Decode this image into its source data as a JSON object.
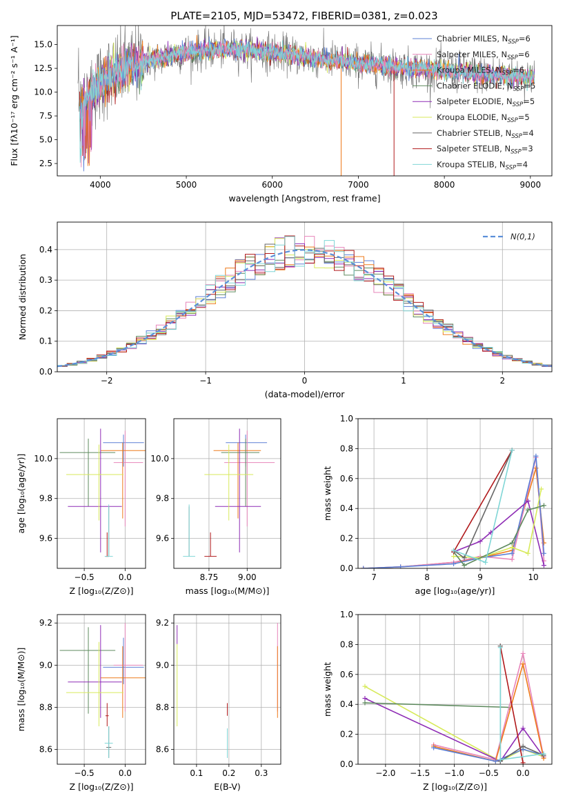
{
  "figure_title": "PLATE=2105, MJD=53472, FIBERID=0381, z=0.023",
  "colors": {
    "Chabrier MILES": "#5b7fd6",
    "Salpeter MILES": "#e784b9",
    "Kroupa MILES": "#ee7a1a",
    "Chabrier ELODIE": "#5e8a5e",
    "Salpeter ELODIE": "#8e2cb5",
    "Kroupa ELODIE": "#d7ea5a",
    "Chabrier STELIB": "#666666",
    "Salpeter STELIB": "#b0181a",
    "Kroupa STELIB": "#7fd6d6"
  },
  "legend": [
    {
      "name": "Chabrier MILES",
      "label_main": "Chabrier MILES, N",
      "label_sub": "SSP",
      "label_tail": "=6"
    },
    {
      "name": "Salpeter MILES",
      "label_main": "Salpeter MILES, N",
      "label_sub": "SSP",
      "label_tail": "=6"
    },
    {
      "name": "Kroupa MILES",
      "label_main": "Kroupa MILES, N",
      "label_sub": "SSP",
      "label_tail": "=6"
    },
    {
      "name": "Chabrier ELODIE",
      "label_main": "Chabrier ELODIE, N",
      "label_sub": "SSP",
      "label_tail": "=5"
    },
    {
      "name": "Salpeter ELODIE",
      "label_main": "Salpeter ELODIE, N",
      "label_sub": "SSP",
      "label_tail": "=5"
    },
    {
      "name": "Kroupa ELODIE",
      "label_main": "Kroupa ELODIE, N",
      "label_sub": "SSP",
      "label_tail": "=5"
    },
    {
      "name": "Chabrier STELIB",
      "label_main": "Chabrier STELIB, N",
      "label_sub": "SSP",
      "label_tail": "=4"
    },
    {
      "name": "Salpeter STELIB",
      "label_main": "Salpeter STELIB, N",
      "label_sub": "SSP",
      "label_tail": "=3"
    },
    {
      "name": "Kroupa STELIB",
      "label_main": "Kroupa STELIB, N",
      "label_sub": "SSP",
      "label_tail": "=4"
    }
  ],
  "chart_data": [
    {
      "id": "spectrum",
      "type": "line",
      "xlabel": "wavelength [Angstrom, rest frame]",
      "ylabel": "Flux [fλ10⁻¹⁷ erg cm⁻² s⁻¹ A⁻¹]",
      "xlim": [
        3500,
        9250
      ],
      "ylim": [
        1.2,
        17.0
      ],
      "xticks": [
        4000,
        5000,
        6000,
        7000,
        8000,
        9000
      ],
      "yticks": [
        2.5,
        5.0,
        7.5,
        10.0,
        12.5,
        15.0
      ],
      "legend_position": "upper-right",
      "continuum_x": [
        3750,
        3800,
        3900,
        4000,
        4100,
        4300,
        4500,
        5000,
        5500,
        6000,
        6500,
        7000,
        7500,
        8000,
        8500,
        9000
      ],
      "continuum_y": [
        8.0,
        9.0,
        10.0,
        11.0,
        11.8,
        12.5,
        13.2,
        14.2,
        14.6,
        14.2,
        13.6,
        13.0,
        12.6,
        12.2,
        11.9,
        11.6
      ],
      "grid": false
    },
    {
      "id": "residual_histogram",
      "type": "step",
      "xlabel": "(data-model)/error",
      "ylabel": "Normed distribution",
      "xlim": [
        -2.5,
        2.5
      ],
      "ylim": [
        0,
        0.49
      ],
      "xticks": [
        -2,
        -1,
        0,
        1,
        2
      ],
      "yticks": [
        0.0,
        0.1,
        0.2,
        0.3,
        0.4
      ],
      "grid": true,
      "legend_label": "N(0,1)",
      "legend_position": "upper-right",
      "bin_width": 0.1
    },
    {
      "id": "age_vs_Z",
      "type": "errorbar",
      "xlabel": "Z [log₁₀(Z/Z⊙)]",
      "ylabel": "age  [log₁₀(age/yr)]",
      "xlim": [
        -0.83,
        0.25
      ],
      "ylim": [
        9.45,
        10.2
      ],
      "xticks": [
        -0.5,
        0.0
      ],
      "yticks": [
        9.6,
        9.8,
        10.0
      ],
      "grid": true,
      "points": [
        {
          "series": "Chabrier MILES",
          "x": -0.02,
          "y": 10.08,
          "xerr": [
            0.25,
            0.25
          ],
          "yerr": [
            0.12,
            0.04
          ]
        },
        {
          "series": "Salpeter MILES",
          "x": 0.0,
          "y": 9.98,
          "xerr": [
            0.14,
            0.22
          ],
          "yerr": [
            0.32,
            0.16
          ]
        },
        {
          "series": "Kroupa MILES",
          "x": -0.03,
          "y": 10.04,
          "xerr": [
            0.27,
            0.28
          ],
          "yerr": [
            0.34,
            0.04
          ]
        },
        {
          "series": "Chabrier ELODIE",
          "x": -0.45,
          "y": 10.03,
          "xerr": [
            0.35,
            0.33
          ],
          "yerr": [
            0.27,
            0.07
          ]
        },
        {
          "series": "Salpeter ELODIE",
          "x": -0.3,
          "y": 9.76,
          "xerr": [
            0.4,
            0.26
          ],
          "yerr": [
            0.23,
            0.39
          ]
        },
        {
          "series": "Kroupa ELODIE",
          "x": -0.32,
          "y": 9.92,
          "xerr": [
            0.4,
            0.3
          ],
          "yerr": [
            0.23,
            0.15
          ]
        },
        {
          "series": "Chabrier STELIB",
          "x": -0.2,
          "y": 9.51,
          "xerr": [
            0.0,
            0.0
          ],
          "yerr": [
            0.0,
            0.25
          ]
        },
        {
          "series": "Salpeter STELIB",
          "x": -0.22,
          "y": 9.51,
          "xerr": [
            0.02,
            0.02
          ],
          "yerr": [
            0.0,
            0.12
          ]
        },
        {
          "series": "Kroupa STELIB",
          "x": -0.2,
          "y": 9.51,
          "xerr": [
            0.05,
            0.05
          ],
          "yerr": [
            0.0,
            0.26
          ]
        }
      ]
    },
    {
      "id": "age_vs_mass",
      "type": "errorbar",
      "xlabel": "mass [log₁₀(M/M⊙)]",
      "xlim": [
        8.52,
        9.22
      ],
      "ylim": [
        9.45,
        10.2
      ],
      "xticks": [
        8.75,
        9.0
      ],
      "yticks": [
        9.6,
        9.8,
        10.0
      ],
      "grid": true,
      "points": [
        {
          "series": "Chabrier MILES",
          "x": 8.99,
          "y": 10.08,
          "xerr": [
            0.13,
            0.14
          ],
          "yerr": [
            0.12,
            0.04
          ]
        },
        {
          "series": "Salpeter MILES",
          "x": 9.0,
          "y": 9.98,
          "xerr": [
            0.15,
            0.18
          ],
          "yerr": [
            0.32,
            0.16
          ]
        },
        {
          "series": "Kroupa MILES",
          "x": 8.94,
          "y": 10.04,
          "xerr": [
            0.16,
            0.15
          ],
          "yerr": [
            0.34,
            0.04
          ]
        },
        {
          "series": "Chabrier ELODIE",
          "x": 8.99,
          "y": 10.03,
          "xerr": [
            0.16,
            0.09
          ],
          "yerr": [
            0.27,
            0.07
          ]
        },
        {
          "series": "Salpeter ELODIE",
          "x": 8.95,
          "y": 9.76,
          "xerr": [
            0.16,
            0.14
          ],
          "yerr": [
            0.23,
            0.39
          ]
        },
        {
          "series": "Kroupa ELODIE",
          "x": 8.88,
          "y": 9.92,
          "xerr": [
            0.16,
            0.16
          ],
          "yerr": [
            0.23,
            0.15
          ]
        },
        {
          "series": "Chabrier STELIB",
          "x": 8.62,
          "y": 9.51,
          "xerr": [
            0.0,
            0.0
          ],
          "yerr": [
            0.0,
            0.25
          ]
        },
        {
          "series": "Salpeter STELIB",
          "x": 8.76,
          "y": 9.51,
          "xerr": [
            0.04,
            0.04
          ],
          "yerr": [
            0.0,
            0.12
          ]
        },
        {
          "series": "Kroupa STELIB",
          "x": 8.62,
          "y": 9.51,
          "xerr": [
            0.04,
            0.04
          ],
          "yerr": [
            0.0,
            0.26
          ]
        }
      ]
    },
    {
      "id": "massweight_vs_age",
      "type": "line",
      "xlabel": "age  [log₁₀(age/yr)]",
      "ylabel": "mass weight",
      "xlim": [
        6.7,
        10.35
      ],
      "ylim": [
        0.0,
        1.0
      ],
      "xticks": [
        7,
        8,
        9,
        10
      ],
      "yticks": [
        0.0,
        0.2,
        0.4,
        0.6,
        0.8,
        1.0
      ],
      "grid": true,
      "series": [
        {
          "name": "Kroupa MILES",
          "x": [
            6.8,
            7.5,
            8.5,
            9.0,
            9.6,
            10.05,
            10.2
          ],
          "y": [
            0.0,
            0.01,
            0.04,
            0.07,
            0.12,
            0.67,
            0.17
          ]
        },
        {
          "name": "Salpeter MILES",
          "x": [
            6.8,
            7.5,
            8.5,
            9.0,
            9.6,
            10.05,
            10.2
          ],
          "y": [
            0.0,
            0.01,
            0.04,
            0.08,
            0.06,
            0.74,
            0.05
          ]
        },
        {
          "name": "Chabrier MILES",
          "x": [
            6.8,
            7.5,
            8.5,
            9.0,
            9.6,
            10.05,
            10.2
          ],
          "y": [
            0.0,
            0.01,
            0.03,
            0.07,
            0.1,
            0.75,
            0.1
          ]
        },
        {
          "name": "Salpeter ELODIE",
          "x": [
            8.5,
            9.0,
            9.2,
            9.9,
            10.2
          ],
          "y": [
            0.11,
            0.18,
            0.24,
            0.45,
            0.02
          ]
        },
        {
          "name": "Kroupa ELODIE",
          "x": [
            8.5,
            9.0,
            9.6,
            9.9,
            10.15
          ],
          "y": [
            0.08,
            0.07,
            0.14,
            0.1,
            0.53
          ]
        },
        {
          "name": "Chabrier ELODIE",
          "x": [
            8.5,
            8.7,
            9.6,
            9.9,
            10.2
          ],
          "y": [
            0.11,
            0.02,
            0.17,
            0.39,
            0.42
          ]
        },
        {
          "name": "Salpeter STELIB",
          "x": [
            8.5,
            9.6
          ],
          "y": [
            0.11,
            0.79
          ]
        },
        {
          "name": "Chabrier STELIB",
          "x": [
            8.5,
            8.7,
            9.6
          ],
          "y": [
            0.12,
            0.07,
            0.79
          ]
        },
        {
          "name": "Kroupa STELIB",
          "x": [
            8.5,
            9.1,
            9.6
          ],
          "y": [
            0.12,
            0.04,
            0.79
          ]
        }
      ]
    },
    {
      "id": "mass_vs_Z",
      "type": "errorbar",
      "xlabel": "Z [log₁₀(Z/Z⊙)]",
      "ylabel": "mass [log₁₀(M/M⊙)]",
      "xlim": [
        -0.83,
        0.25
      ],
      "ylim": [
        8.53,
        9.24
      ],
      "xticks": [
        -0.5,
        0.0
      ],
      "yticks": [
        8.6,
        8.8,
        9.0,
        9.2
      ],
      "grid": true,
      "points": [
        {
          "series": "Chabrier MILES",
          "x": -0.02,
          "y": 8.99,
          "xerr": [
            0.25,
            0.25
          ],
          "yerr": [
            0.08,
            0.14
          ]
        },
        {
          "series": "Salpeter MILES",
          "x": 0.0,
          "y": 9.0,
          "xerr": [
            0.14,
            0.22
          ],
          "yerr": [
            0.22,
            0.2
          ]
        },
        {
          "series": "Kroupa MILES",
          "x": -0.03,
          "y": 8.94,
          "xerr": [
            0.27,
            0.28
          ],
          "yerr": [
            0.19,
            0.15
          ]
        },
        {
          "series": "Chabrier ELODIE",
          "x": -0.45,
          "y": 9.07,
          "xerr": [
            0.35,
            0.33
          ],
          "yerr": [
            0.3,
            0.11
          ]
        },
        {
          "series": "Salpeter ELODIE",
          "x": -0.3,
          "y": 8.92,
          "xerr": [
            0.4,
            0.26
          ],
          "yerr": [
            0.17,
            0.27
          ]
        },
        {
          "series": "Kroupa ELODIE",
          "x": -0.32,
          "y": 8.87,
          "xerr": [
            0.4,
            0.3
          ],
          "yerr": [
            0.16,
            0.24
          ]
        },
        {
          "series": "Chabrier STELIB",
          "x": -0.2,
          "y": 8.61,
          "xerr": [
            0.03,
            0.03
          ],
          "yerr": [
            0.05,
            0.1
          ]
        },
        {
          "series": "Salpeter STELIB",
          "x": -0.22,
          "y": 8.76,
          "xerr": [
            0.02,
            0.02
          ],
          "yerr": [
            0.05,
            0.06
          ]
        },
        {
          "series": "Kroupa STELIB",
          "x": -0.2,
          "y": 8.63,
          "xerr": [
            0.05,
            0.05
          ],
          "yerr": [
            0.07,
            0.08
          ]
        }
      ]
    },
    {
      "id": "mass_vs_EBV",
      "type": "errorbar",
      "xlabel": "E(B-V)",
      "xlim": [
        0.03,
        0.36
      ],
      "ylim": [
        8.53,
        9.24
      ],
      "xticks": [
        0.1,
        0.2,
        0.3
      ],
      "yticks": [
        8.6,
        8.8,
        9.0,
        9.2
      ],
      "grid": true,
      "points": [
        {
          "series": "Salpeter MILES",
          "x": 0.35,
          "y": 9.0,
          "xerr": [
            0.0,
            0.0
          ],
          "yerr": [
            0.22,
            0.2
          ]
        },
        {
          "series": "Kroupa MILES",
          "x": 0.35,
          "y": 8.94,
          "xerr": [
            0.0,
            0.0
          ],
          "yerr": [
            0.19,
            0.15
          ]
        },
        {
          "series": "Salpeter ELODIE",
          "x": 0.04,
          "y": 9.1,
          "xerr": [
            0.0,
            0.0
          ],
          "yerr": [
            0.0,
            0.09
          ]
        },
        {
          "series": "Kroupa ELODIE",
          "x": 0.04,
          "y": 8.9,
          "xerr": [
            0.0,
            0.0
          ],
          "yerr": [
            0.19,
            0.2
          ]
        },
        {
          "series": "Salpeter STELIB",
          "x": 0.195,
          "y": 8.76,
          "xerr": [
            0.0,
            0.0
          ],
          "yerr": [
            0.0,
            0.06
          ]
        },
        {
          "series": "Kroupa STELIB",
          "x": 0.195,
          "y": 8.62,
          "xerr": [
            0.0,
            0.0
          ],
          "yerr": [
            0.06,
            0.08
          ]
        }
      ]
    },
    {
      "id": "massweight_vs_Z",
      "type": "line",
      "xlabel": "Z [log₁₀(Z/Z⊙)]",
      "ylabel": "mass weight",
      "xlim": [
        -2.4,
        0.42
      ],
      "ylim": [
        0.0,
        1.0
      ],
      "xticks": [
        -2.0,
        -1.5,
        -1.0,
        -0.5,
        0.0
      ],
      "yticks": [
        0.0,
        0.2,
        0.4,
        0.6,
        0.8,
        1.0
      ],
      "grid": true,
      "series": [
        {
          "name": "Kroupa ELODIE",
          "x": [
            -2.3,
            -0.33,
            0.0,
            0.3
          ],
          "y": [
            0.52,
            0.02,
            0.1,
            0.05
          ]
        },
        {
          "name": "Salpeter ELODIE",
          "x": [
            -2.3,
            -0.33,
            0.0,
            0.3
          ],
          "y": [
            0.44,
            0.02,
            0.24,
            0.05
          ]
        },
        {
          "name": "Chabrier ELODIE",
          "x": [
            -2.3,
            -0.2
          ],
          "y": [
            0.41,
            0.38
          ]
        },
        {
          "name": "Salpeter MILES",
          "x": [
            -1.3,
            -0.4,
            0.0,
            0.3
          ],
          "y": [
            0.13,
            0.03,
            0.74,
            0.05
          ]
        },
        {
          "name": "Kroupa MILES",
          "x": [
            -1.3,
            -0.4,
            0.0,
            0.3
          ],
          "y": [
            0.12,
            0.02,
            0.67,
            0.04
          ]
        },
        {
          "name": "Chabrier MILES",
          "x": [
            -1.3,
            -0.4,
            0.0,
            0.3
          ],
          "y": [
            0.11,
            0.02,
            0.1,
            0.06
          ]
        },
        {
          "name": "Salpeter STELIB",
          "x": [
            -0.33,
            0.0
          ],
          "y": [
            0.79,
            0.01
          ]
        },
        {
          "name": "Chabrier STELIB",
          "x": [
            -0.33,
            -0.33,
            0.0,
            0.3
          ],
          "y": [
            0.79,
            0.02,
            0.12,
            0.06
          ]
        },
        {
          "name": "Kroupa STELIB",
          "x": [
            -0.33,
            -0.33,
            0.3
          ],
          "y": [
            0.78,
            0.03,
            0.07
          ]
        }
      ]
    }
  ]
}
